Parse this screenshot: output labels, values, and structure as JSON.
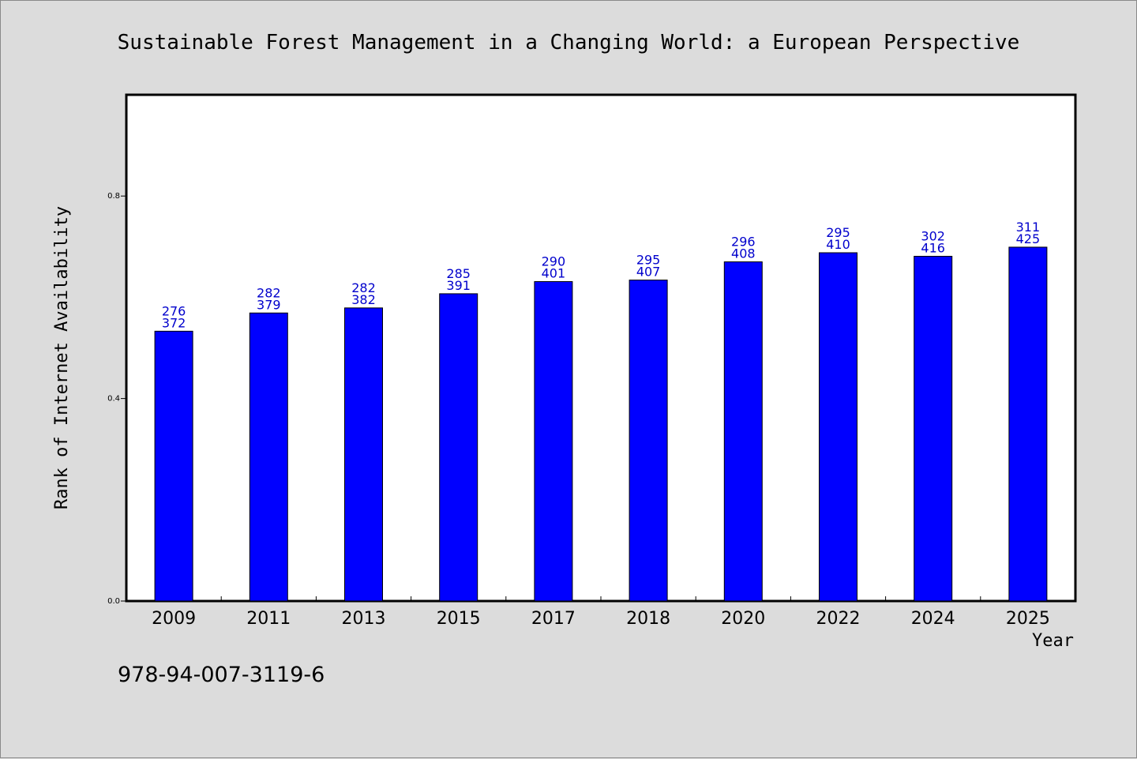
{
  "colors": {
    "background": "#dcdcdc",
    "plot": "#ffffff",
    "bar": "#0000ff",
    "label": "#0000cc"
  },
  "footer": {
    "isbn": "978-94-007-3119-6"
  },
  "chart_data": {
    "type": "bar",
    "title": "Sustainable Forest Management in a Changing World: a European Perspective",
    "xlabel": "Year",
    "ylabel": "Rank of Internet Availability",
    "ylim": [
      0,
      1.0
    ],
    "yticks": [
      0.0,
      0.4,
      0.8
    ],
    "ytick_labels": [
      "0.0",
      "0.4",
      "0.8"
    ],
    "grid": false,
    "categories": [
      "2009",
      "2011",
      "2013",
      "2015",
      "2017",
      "2018",
      "2020",
      "2022",
      "2024",
      "2025"
    ],
    "values": [
      0.533,
      0.569,
      0.579,
      0.607,
      0.631,
      0.634,
      0.67,
      0.688,
      0.681,
      0.699
    ],
    "labels_top": [
      "276",
      "282",
      "282",
      "285",
      "290",
      "295",
      "296",
      "295",
      "302",
      "311"
    ],
    "labels_bottom": [
      "372",
      "379",
      "382",
      "391",
      "401",
      "407",
      "408",
      "410",
      "416",
      "425"
    ]
  }
}
